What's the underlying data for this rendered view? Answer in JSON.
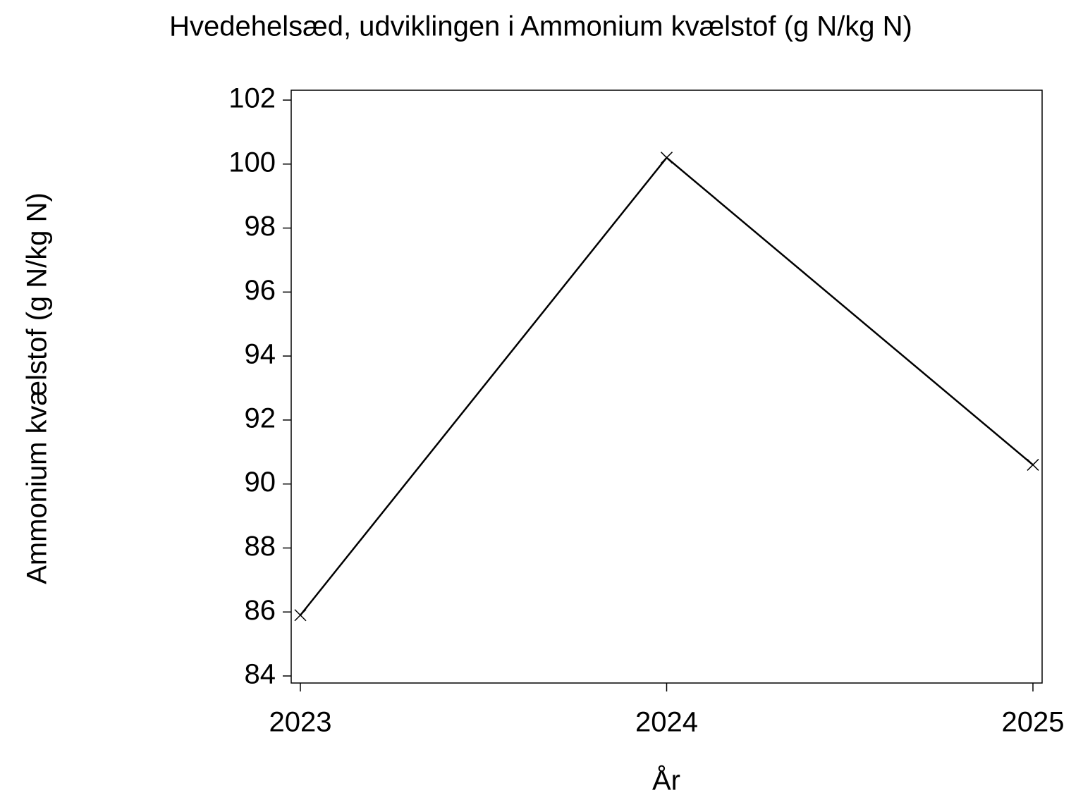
{
  "chart_data": {
    "type": "line",
    "title": "Hvedehelsæd, udviklingen i Ammonium kvælstof (g N/kg N)",
    "x_label": "År",
    "y_label": "Ammonium kvælstof (g N/kg N)",
    "x": [
      2023,
      2024,
      2025
    ],
    "series": [
      {
        "name": "Ammonium kvælstof",
        "color": "#000000",
        "values": [
          85.9,
          100.2,
          90.6
        ]
      }
    ],
    "xlim": [
      2023,
      2025
    ],
    "xticks": [
      2023,
      2024,
      2025
    ],
    "ylim": [
      84,
      102
    ],
    "yticks": [
      84,
      86,
      88,
      90,
      92,
      94,
      96,
      98,
      100,
      102
    ],
    "grid": false,
    "marker": "x"
  }
}
